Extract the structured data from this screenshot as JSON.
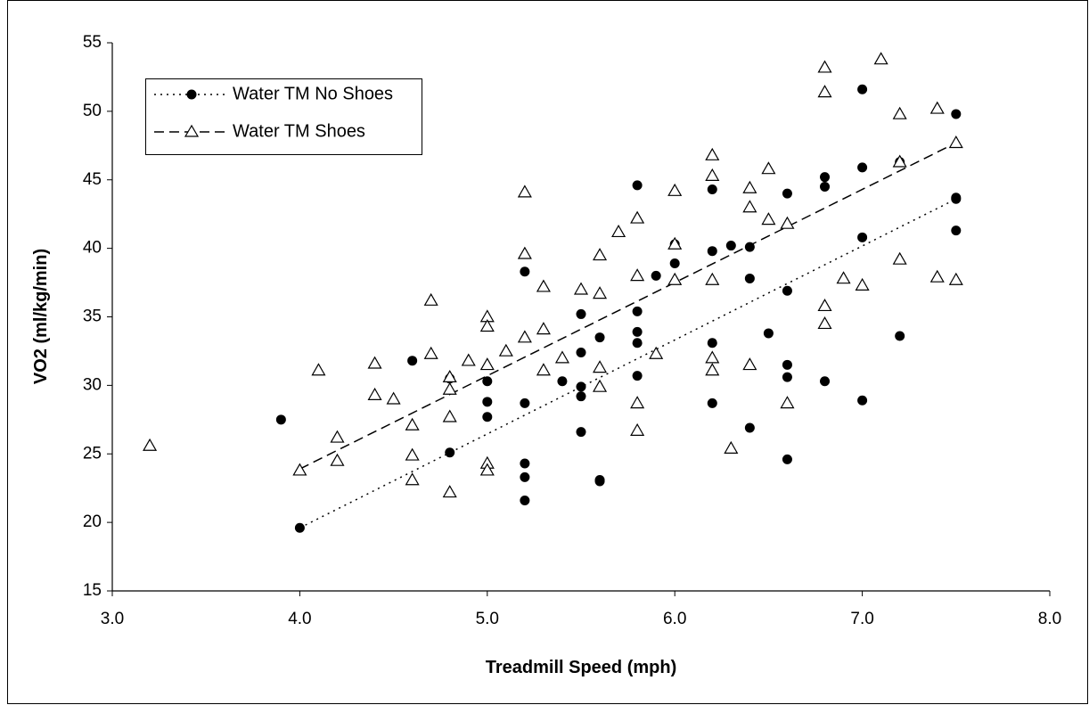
{
  "chart_data": {
    "type": "scatter",
    "x_label": "Treadmill Speed (mph)",
    "y_label": "VO2 (ml/kg/min)",
    "xlim": [
      3,
      8
    ],
    "ylim": [
      15,
      55
    ],
    "xticks": [
      {
        "value": 3,
        "label": "3.0"
      },
      {
        "value": 4,
        "label": "4.0"
      },
      {
        "value": 5,
        "label": "5.0"
      },
      {
        "value": 6,
        "label": "6.0"
      },
      {
        "value": 7,
        "label": "7.0"
      },
      {
        "value": 8,
        "label": "8.0"
      }
    ],
    "yticks": [
      15,
      20,
      25,
      30,
      35,
      40,
      45,
      50,
      55
    ],
    "grid": false,
    "legend": "top-left",
    "series": [
      {
        "name": "Water TM No Shoes",
        "color": "#000000",
        "marker": "circle",
        "line_style": "dotted",
        "x": [
          3.9,
          4.0,
          4.6,
          4.8,
          4.8,
          5.0,
          5.0,
          5.0,
          5.2,
          5.2,
          5.2,
          5.2,
          5.2,
          5.4,
          5.5,
          5.5,
          5.5,
          5.5,
          5.5,
          5.6,
          5.6,
          5.6,
          5.8,
          5.8,
          5.8,
          5.8,
          5.8,
          5.9,
          6.0,
          6.0,
          6.2,
          6.2,
          6.2,
          6.2,
          6.3,
          6.4,
          6.4,
          6.4,
          6.5,
          6.6,
          6.6,
          6.6,
          6.6,
          6.6,
          6.8,
          6.8,
          6.8,
          7.0,
          7.0,
          7.0,
          7.0,
          7.2,
          7.2,
          7.5,
          7.5,
          7.5,
          7.5
        ],
        "values": [
          27.5,
          19.6,
          31.8,
          30.5,
          25.1,
          30.3,
          28.8,
          27.7,
          38.3,
          28.7,
          24.3,
          23.3,
          21.6,
          30.3,
          35.2,
          32.4,
          29.9,
          29.2,
          26.6,
          33.5,
          23.1,
          23.0,
          44.6,
          35.4,
          33.9,
          33.1,
          30.7,
          38.0,
          38.9,
          40.3,
          44.3,
          39.8,
          33.1,
          28.7,
          40.2,
          40.1,
          37.8,
          26.9,
          33.8,
          44.0,
          36.9,
          31.5,
          30.6,
          24.6,
          45.2,
          44.5,
          30.3,
          51.6,
          45.9,
          40.8,
          28.9,
          46.3,
          33.6,
          49.8,
          43.7,
          43.6,
          41.3
        ],
        "trendline": {
          "x": [
            4.0,
            7.5
          ],
          "y": [
            19.6,
            43.6
          ]
        }
      },
      {
        "name": "Water TM Shoes",
        "color": "#000000",
        "marker": "triangle",
        "line_style": "dashed",
        "x": [
          3.2,
          4.0,
          4.1,
          4.2,
          4.2,
          4.4,
          4.4,
          4.5,
          4.6,
          4.6,
          4.6,
          4.7,
          4.7,
          4.8,
          4.8,
          4.8,
          4.8,
          4.9,
          5.0,
          5.0,
          5.0,
          5.0,
          5.0,
          5.1,
          5.2,
          5.2,
          5.2,
          5.3,
          5.3,
          5.3,
          5.4,
          5.5,
          5.6,
          5.6,
          5.6,
          5.6,
          5.7,
          5.8,
          5.8,
          5.8,
          5.8,
          5.9,
          6.0,
          6.0,
          6.0,
          6.2,
          6.2,
          6.2,
          6.2,
          6.2,
          6.3,
          6.4,
          6.4,
          6.4,
          6.5,
          6.5,
          6.6,
          6.6,
          6.8,
          6.8,
          6.8,
          6.8,
          6.9,
          7.0,
          7.1,
          7.2,
          7.2,
          7.2,
          7.4,
          7.4,
          7.5,
          7.5
        ],
        "values": [
          25.6,
          23.8,
          31.1,
          26.2,
          24.5,
          31.6,
          29.3,
          29.0,
          27.1,
          24.9,
          23.1,
          36.2,
          32.3,
          30.6,
          29.7,
          27.7,
          22.2,
          31.8,
          35.0,
          34.3,
          31.5,
          24.3,
          23.8,
          32.5,
          44.1,
          39.6,
          33.5,
          37.2,
          34.1,
          31.1,
          32.0,
          37.0,
          39.5,
          36.7,
          31.3,
          29.9,
          41.2,
          42.2,
          38.0,
          28.7,
          26.7,
          32.3,
          44.2,
          40.3,
          37.7,
          46.8,
          45.3,
          37.7,
          32.0,
          31.1,
          25.4,
          44.4,
          43.0,
          31.5,
          45.8,
          42.1,
          41.8,
          28.7,
          53.2,
          51.4,
          35.8,
          34.5,
          37.8,
          37.3,
          53.8,
          49.8,
          46.3,
          39.2,
          50.2,
          37.9,
          47.7,
          37.7
        ],
        "trendline": {
          "x": [
            4.0,
            7.5
          ],
          "y": [
            23.9,
            47.7
          ]
        }
      }
    ]
  }
}
